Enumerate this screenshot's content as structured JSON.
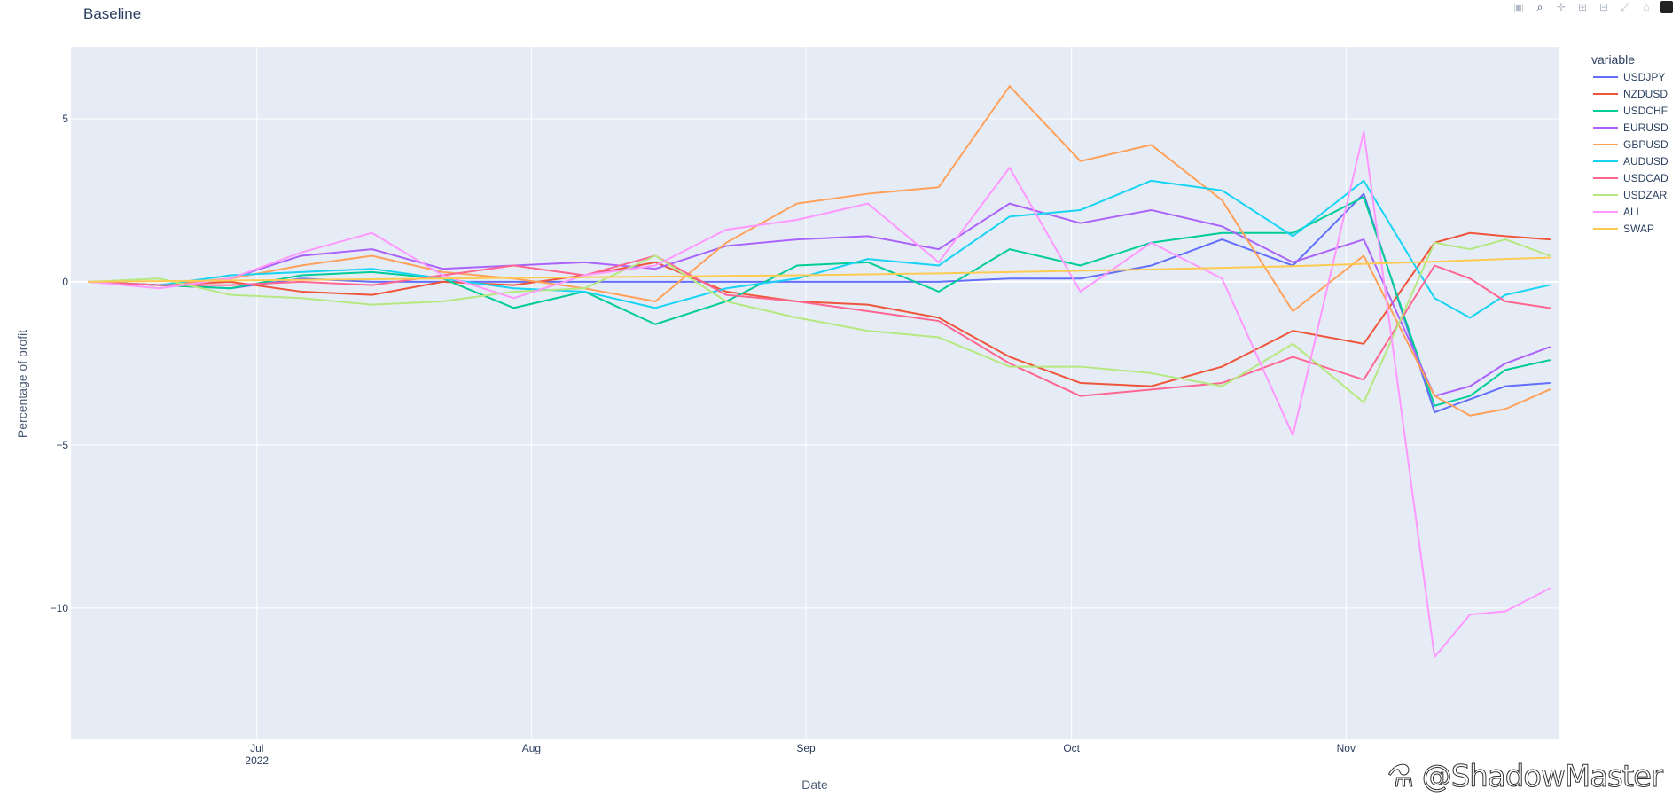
{
  "title": "Baseline",
  "watermark": "⚗ @ShadowMaster",
  "modebar": {
    "buttons": [
      {
        "name": "camera-icon",
        "glyph": "▣"
      },
      {
        "name": "zoom-icon",
        "glyph": "⌕"
      },
      {
        "name": "pan-icon",
        "glyph": "✛"
      },
      {
        "name": "zoom-in-icon",
        "glyph": "⊞"
      },
      {
        "name": "zoom-out-icon",
        "glyph": "⊟"
      },
      {
        "name": "autoscale-icon",
        "glyph": "⤢"
      },
      {
        "name": "home-icon",
        "glyph": "⌂"
      }
    ]
  },
  "chart_data": {
    "type": "line",
    "title": "Baseline",
    "xlabel": "Date",
    "ylabel": "Percentage of profit",
    "xlim": [
      "2022-06-10",
      "2022-11-25"
    ],
    "ylim": [
      -14,
      7.2
    ],
    "x_ticks": [
      {
        "date": "2022-07-01",
        "label": "Jul",
        "sublabel": "2022"
      },
      {
        "date": "2022-08-01",
        "label": "Aug",
        "sublabel": ""
      },
      {
        "date": "2022-09-01",
        "label": "Sep",
        "sublabel": ""
      },
      {
        "date": "2022-10-01",
        "label": "Oct",
        "sublabel": ""
      },
      {
        "date": "2022-11-01",
        "label": "Nov",
        "sublabel": ""
      }
    ],
    "y_ticks": [
      5,
      0,
      -5,
      -10
    ],
    "grid": true,
    "plot_bgcolor": "#E5ECF6",
    "legend": {
      "title": "variable",
      "placement": "right"
    },
    "x_dates": [
      "2022-06-12",
      "2022-06-20",
      "2022-06-28",
      "2022-07-06",
      "2022-07-14",
      "2022-07-22",
      "2022-07-30",
      "2022-08-07",
      "2022-08-15",
      "2022-08-23",
      "2022-08-31",
      "2022-09-08",
      "2022-09-16",
      "2022-09-24",
      "2022-10-02",
      "2022-10-10",
      "2022-10-18",
      "2022-10-26",
      "2022-11-03",
      "2022-11-11",
      "2022-11-15",
      "2022-11-19",
      "2022-11-24"
    ],
    "series": [
      {
        "name": "USDJPY",
        "color": "#636EFA",
        "values": [
          0,
          -0.1,
          -0.2,
          0.1,
          0,
          0,
          0,
          0,
          0,
          0,
          0,
          0,
          0,
          0.1,
          0.1,
          0.5,
          1.3,
          0.5,
          2.7,
          -4,
          -3.6,
          -3.2,
          -3.1
        ]
      },
      {
        "name": "NZDUSD",
        "color": "#EF553B",
        "values": [
          0,
          -0.1,
          0,
          -0.3,
          -0.4,
          0,
          -0.1,
          0.2,
          0.6,
          -0.3,
          -0.6,
          -0.7,
          -1.1,
          -2.3,
          -3.1,
          -3.2,
          -2.6,
          -1.5,
          -1.9,
          1.2,
          1.5,
          1.4,
          1.3
        ]
      },
      {
        "name": "USDCHF",
        "color": "#00CC96",
        "values": [
          0,
          -0.1,
          -0.2,
          0.2,
          0.3,
          0.1,
          -0.8,
          -0.3,
          -1.3,
          -0.6,
          0.5,
          0.6,
          -0.3,
          1.0,
          0.5,
          1.2,
          1.5,
          1.5,
          2.6,
          -3.8,
          -3.5,
          -2.7,
          -2.4
        ]
      },
      {
        "name": "EURUSD",
        "color": "#AB63FA",
        "values": [
          0,
          -0.1,
          0.1,
          0.8,
          1.0,
          0.4,
          0.5,
          0.6,
          0.4,
          1.1,
          1.3,
          1.4,
          1.0,
          2.4,
          1.8,
          2.2,
          1.7,
          0.6,
          1.3,
          -3.5,
          -3.2,
          -2.5,
          -2.0
        ]
      },
      {
        "name": "GBPUSD",
        "color": "#FFA15A",
        "values": [
          0,
          -0.1,
          0.1,
          0.5,
          0.8,
          0.3,
          0.1,
          -0.2,
          -0.6,
          1.2,
          2.4,
          2.7,
          2.9,
          6.0,
          3.7,
          4.2,
          2.5,
          -0.9,
          0.8,
          -3.5,
          -4.1,
          -3.9,
          -3.3
        ]
      },
      {
        "name": "AUDUSD",
        "color": "#19D3F3",
        "values": [
          0,
          -0.1,
          0.2,
          0.3,
          0.4,
          0.1,
          -0.2,
          -0.3,
          -0.8,
          -0.2,
          0.1,
          0.7,
          0.5,
          2.0,
          2.2,
          3.1,
          2.8,
          1.4,
          3.1,
          -0.5,
          -1.1,
          -0.4,
          -0.1
        ]
      },
      {
        "name": "USDCAD",
        "color": "#FF6692",
        "values": [
          0,
          -0.1,
          -0.1,
          0,
          -0.1,
          0.2,
          0.5,
          0.2,
          0.8,
          -0.4,
          -0.6,
          -0.9,
          -1.2,
          -2.5,
          -3.5,
          -3.3,
          -3.1,
          -2.3,
          -3.0,
          0.5,
          0.1,
          -0.6,
          -0.8
        ]
      },
      {
        "name": "USDZAR",
        "color": "#B6E880",
        "values": [
          0,
          0.1,
          -0.4,
          -0.5,
          -0.7,
          -0.6,
          -0.3,
          -0.2,
          0.8,
          -0.6,
          -1.1,
          -1.5,
          -1.7,
          -2.6,
          -2.6,
          -2.8,
          -3.2,
          -1.9,
          -3.7,
          1.2,
          1.0,
          1.3,
          0.8
        ]
      },
      {
        "name": "ALL",
        "color": "#FF97FF",
        "values": [
          0,
          -0.2,
          0.1,
          0.9,
          1.5,
          0.2,
          -0.5,
          0.2,
          0.5,
          1.6,
          1.9,
          2.4,
          0.6,
          3.5,
          -0.3,
          1.2,
          0.1,
          -4.7,
          4.6,
          -11.5,
          -10.2,
          -10.1,
          -9.4
        ]
      },
      {
        "name": "SWAP",
        "color": "#FECB52",
        "values": [
          0,
          0.02,
          0.04,
          0.06,
          0.08,
          0.1,
          0.12,
          0.14,
          0.16,
          0.18,
          0.2,
          0.23,
          0.26,
          0.3,
          0.34,
          0.38,
          0.43,
          0.48,
          0.55,
          0.62,
          0.66,
          0.7,
          0.74
        ]
      }
    ]
  }
}
